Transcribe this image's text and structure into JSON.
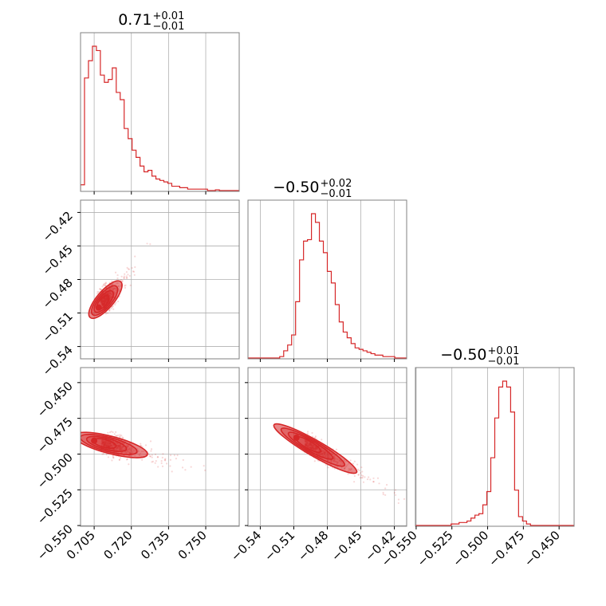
{
  "chart_data": {
    "type": "scatter",
    "style": "corner-plot",
    "color": "#d62728",
    "grid": true,
    "parameters": [
      {
        "id": "p1",
        "range": [
          0.6995,
          0.7635
        ],
        "ticks": [
          0.705,
          0.72,
          0.735,
          0.75
        ],
        "tick_labels": [
          "0.705",
          "0.720",
          "0.735",
          "0.750"
        ]
      },
      {
        "id": "p2",
        "range": [
          -0.551,
          -0.409
        ],
        "ticks": [
          -0.54,
          -0.51,
          -0.48,
          -0.45,
          -0.42
        ],
        "tick_labels": [
          "−0.54",
          "−0.51",
          "−0.48",
          "−0.45",
          "−0.42"
        ]
      },
      {
        "id": "p3",
        "range": [
          -0.5505,
          -0.4395
        ],
        "ticks": [
          -0.55,
          -0.525,
          -0.5,
          -0.475,
          -0.45
        ],
        "tick_labels": [
          "−0.550",
          "−0.525",
          "−0.500",
          "−0.475",
          "−0.450"
        ]
      }
    ],
    "titles": [
      {
        "main": "0.71",
        "sup": "+0.01",
        "sub": "−0.01"
      },
      {
        "main": "−0.50",
        "sup": "+0.02",
        "sub": "−0.01"
      },
      {
        "main": "−0.50",
        "sup": "+0.01",
        "sub": "−0.01"
      }
    ],
    "histograms": [
      {
        "param": 0,
        "bin_start": 0.6995,
        "bin_width": 0.0016,
        "counts": [
          0.04,
          0.78,
          0.9,
          1.0,
          0.97,
          0.8,
          0.75,
          0.77,
          0.85,
          0.68,
          0.63,
          0.43,
          0.36,
          0.28,
          0.23,
          0.17,
          0.13,
          0.14,
          0.1,
          0.08,
          0.07,
          0.06,
          0.05,
          0.03,
          0.03,
          0.02,
          0.02,
          0.01,
          0.01,
          0.01,
          0.01,
          0.01,
          0.0,
          0.0,
          0.005,
          0.0,
          0.0,
          0.0,
          0.0,
          0.0
        ]
      },
      {
        "param": 1,
        "bin_start": -0.551,
        "bin_width": 0.00355,
        "counts": [
          0.0,
          0.0,
          0.0,
          0.0,
          0.0,
          0.0,
          0.0,
          0.0,
          0.01,
          0.05,
          0.09,
          0.16,
          0.39,
          0.68,
          0.81,
          0.82,
          1.0,
          0.94,
          0.81,
          0.73,
          0.6,
          0.52,
          0.37,
          0.25,
          0.18,
          0.14,
          0.1,
          0.07,
          0.06,
          0.05,
          0.04,
          0.03,
          0.02,
          0.02,
          0.01,
          0.01,
          0.01,
          0.0,
          0.0,
          0.0
        ]
      },
      {
        "param": 2,
        "bin_start": -0.5505,
        "bin_width": 0.002775,
        "counts": [
          0.0,
          0.0,
          0.0,
          0.0,
          0.0,
          0.0,
          0.0,
          0.0,
          0.0,
          0.01,
          0.01,
          0.02,
          0.02,
          0.03,
          0.05,
          0.07,
          0.08,
          0.14,
          0.23,
          0.46,
          0.73,
          0.94,
          0.98,
          0.94,
          0.77,
          0.24,
          0.06,
          0.03,
          0.01,
          0.0,
          0.0,
          0.0,
          0.0,
          0.0,
          0.0,
          0.0,
          0.0,
          0.0,
          0.0,
          0.0
        ]
      }
    ],
    "pair_densities": [
      {
        "x_param": 0,
        "y_param": 1,
        "center": [
          0.708,
          -0.502
        ],
        "slope": 2.6,
        "spread_along": 0.0055,
        "spread_across": 0.005,
        "contours": [
          0.5,
          1.0,
          1.5,
          2.0
        ]
      },
      {
        "x_param": 0,
        "y_param": 2,
        "center": [
          0.708,
          -0.492
        ],
        "slope": -0.45,
        "spread_along": 0.0055,
        "spread_across": 0.004,
        "contours": [
          0.5,
          1.0,
          1.5,
          2.0
        ]
      },
      {
        "x_param": 1,
        "y_param": 2,
        "center": [
          -0.5,
          -0.492
        ],
        "slope": -0.45,
        "spread_along": 0.014,
        "spread_across": 0.0035,
        "contours": [
          0.5,
          1.0,
          1.5,
          2.0
        ]
      }
    ]
  }
}
